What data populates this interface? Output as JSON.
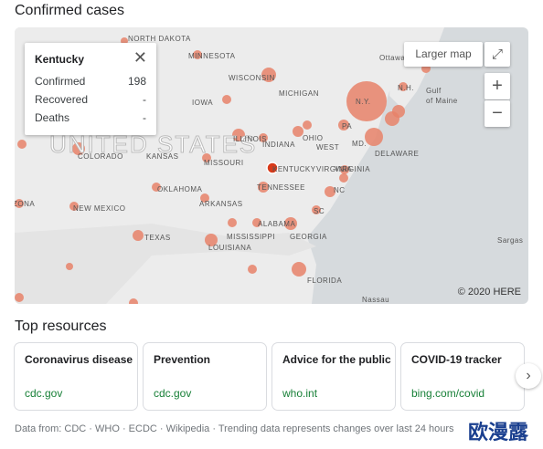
{
  "header": {
    "title": "Confirmed cases"
  },
  "map": {
    "labels": [
      "NORTH DAKOTA",
      "MINNESOTA",
      "WISCONSIN",
      "MICHIGAN",
      "Ottawa",
      "IOWA",
      "UNITED STATES",
      "ILLINOIS",
      "INDIANA",
      "OHIO",
      "WEST",
      "VIRGINIA",
      "VIRGINIA",
      "COLORADO",
      "KANSAS",
      "MISSOURI",
      "KENTUCKY",
      "OKLAHOMA",
      "TENNESSEE",
      "ARKANSAS",
      "NEW MEXICO",
      "NC",
      "SC",
      "TEXAS",
      "MISSISSIPPI",
      "ALABAMA",
      "GEORGIA",
      "LOUISIANA",
      "FLORIDA",
      "Nassau",
      "Gulf",
      "of Maine",
      "N.Y.",
      "PA",
      "MD.",
      "DELAWARE",
      "N.H.",
      "Sargas",
      "ZONA"
    ],
    "attribution": "© 2020 HERE",
    "larger_map": "Larger map",
    "zoom_in": "+",
    "zoom_out": "−"
  },
  "popup": {
    "title": "Kentucky",
    "rows": [
      [
        "Confirmed",
        "198"
      ],
      [
        "Recovered",
        "-"
      ],
      [
        "Deaths",
        "-"
      ]
    ]
  },
  "resources": {
    "title": "Top resources",
    "cards": [
      {
        "title": "Coronavirus disease",
        "source": "cdc.gov"
      },
      {
        "title": "Prevention",
        "source": "cdc.gov"
      },
      {
        "title": "Advice for the public",
        "source": "who.int"
      },
      {
        "title": "COVID-19 tracker",
        "source": "bing.com/covid"
      }
    ]
  },
  "footer": "Data from: CDC · WHO · ECDC · Wikipedia · Trending data represents changes over last 24 hours",
  "watermark": "欧漫露"
}
